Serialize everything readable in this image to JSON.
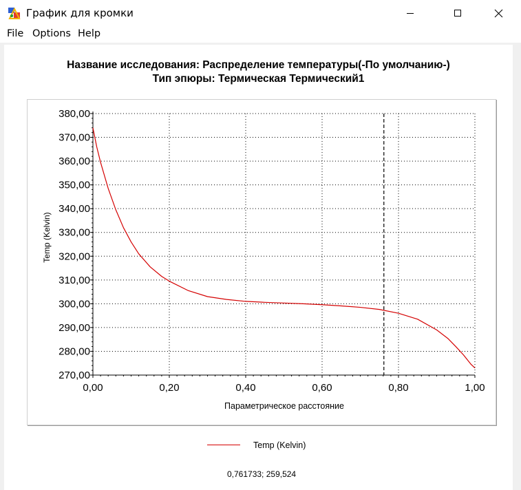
{
  "window": {
    "title": "График для кромки",
    "controls": {
      "minimize": "minimize-icon",
      "maximize": "maximize-icon",
      "close": "close-icon"
    }
  },
  "menu": {
    "file": "File",
    "options": "Options",
    "help": "Help"
  },
  "heading": {
    "line1": "Название исследования: Распределение температуры(-По умолчанию-)",
    "line2": "Тип эпюры: Термическая Термический1"
  },
  "chart_data": {
    "type": "line",
    "xlabel": "Параметрическое расстояние",
    "ylabel": "Temp (Kelvin)",
    "xlim": [
      0,
      1
    ],
    "ylim": [
      270,
      380
    ],
    "x_ticks": [
      "0,00",
      "0,20",
      "0,40",
      "0,60",
      "0,80",
      "1,00"
    ],
    "y_ticks": [
      "270,00",
      "280,00",
      "290,00",
      "300,00",
      "310,00",
      "320,00",
      "330,00",
      "340,00",
      "350,00",
      "360,00",
      "370,00",
      "380,00"
    ],
    "grid": true,
    "cursor_x": 0.761733,
    "series": [
      {
        "name": "Temp (Kelvin)",
        "color": "#d40000",
        "x": [
          0.0,
          0.01,
          0.02,
          0.04,
          0.06,
          0.08,
          0.1,
          0.12,
          0.15,
          0.18,
          0.2,
          0.25,
          0.3,
          0.35,
          0.4,
          0.45,
          0.5,
          0.55,
          0.6,
          0.65,
          0.7,
          0.75,
          0.8,
          0.85,
          0.9,
          0.93,
          0.95,
          0.97,
          0.99,
          1.0
        ],
        "y": [
          374.0,
          366.0,
          359.5,
          348.5,
          339.5,
          332.0,
          326.0,
          321.0,
          315.5,
          311.5,
          309.5,
          305.5,
          303.0,
          301.8,
          301.0,
          300.6,
          300.3,
          300.0,
          299.6,
          299.1,
          298.5,
          297.6,
          296.0,
          293.5,
          289.0,
          285.3,
          282.0,
          278.5,
          274.5,
          273.0
        ]
      }
    ]
  },
  "legend": {
    "label": "Temp (Kelvin)"
  },
  "status": {
    "cursor_readout": "0,761733; 259,524"
  }
}
